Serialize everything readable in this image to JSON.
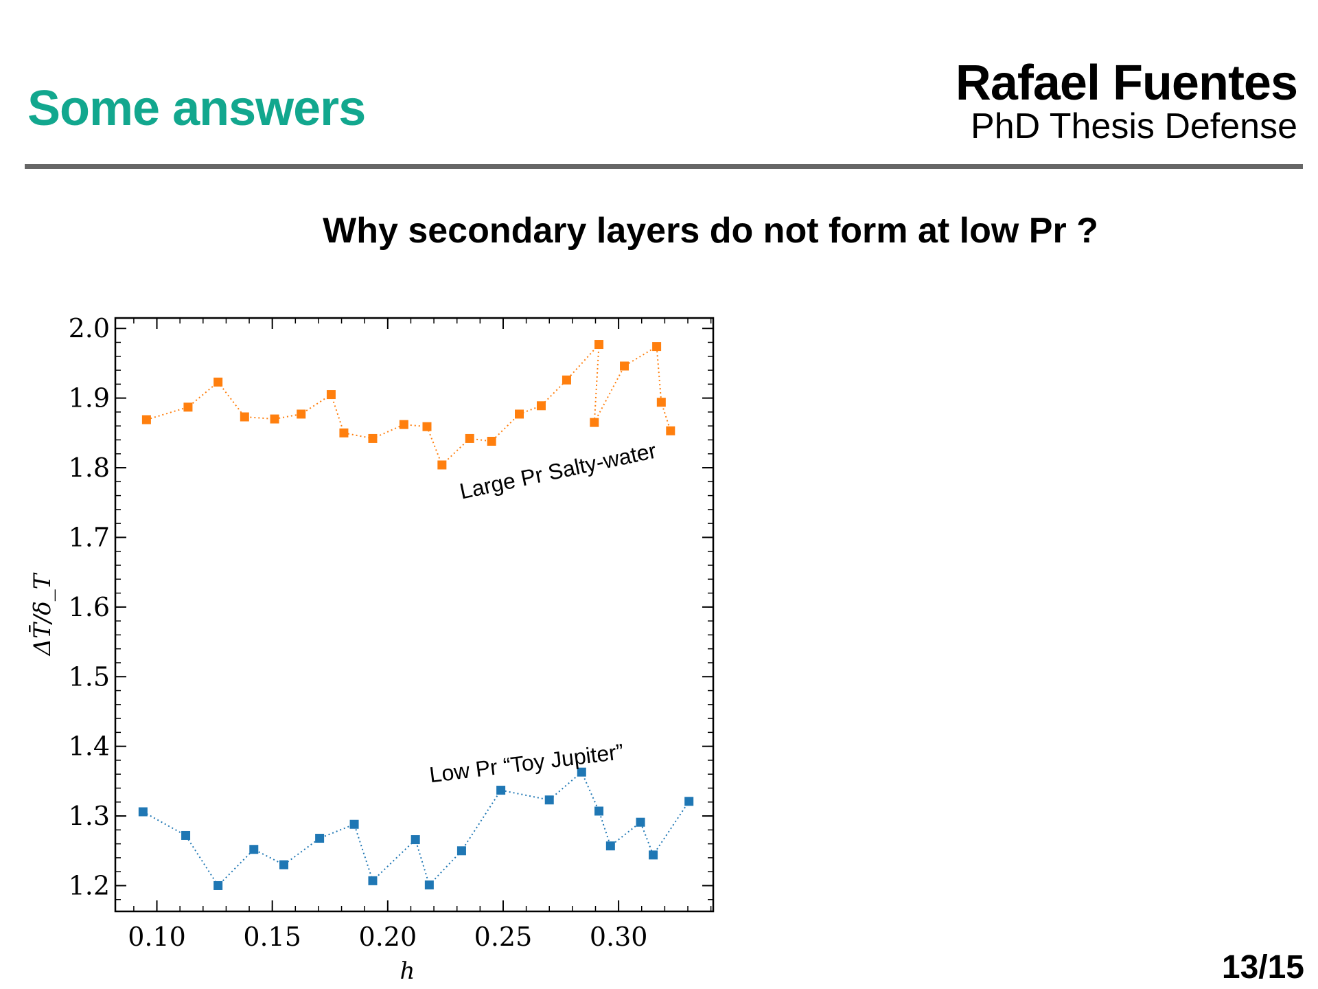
{
  "header": {
    "title": "Some answers",
    "author": "Rafael Fuentes",
    "subtitle": "PhD Thesis Defense"
  },
  "question": "Why secondary layers do not form at low Pr ?",
  "page": "13/15",
  "chart_data": {
    "type": "line",
    "xlabel": "h",
    "ylabel": "ΔT̄/δ_T",
    "xlim": [
      0.082,
      0.341
    ],
    "ylim": [
      1.163,
      2.015
    ],
    "xticks": [
      0.1,
      0.15,
      0.2,
      0.25,
      0.3
    ],
    "xtick_labels": [
      "0.10",
      "0.15",
      "0.20",
      "0.25",
      "0.30"
    ],
    "yticks": [
      1.2,
      1.3,
      1.4,
      1.5,
      1.6,
      1.7,
      1.8,
      1.9,
      2.0
    ],
    "ytick_labels": [
      "1.2",
      "1.3",
      "1.4",
      "1.5",
      "1.6",
      "1.7",
      "1.8",
      "1.9",
      "2.0"
    ],
    "grid": false,
    "marker": "square",
    "line_style": "dotted",
    "series": [
      {
        "name": "Large Pr Salty-water",
        "color": "#ff7f0e",
        "x": [
          0.0955,
          0.1135,
          0.1265,
          0.138,
          0.151,
          0.1625,
          0.1755,
          0.181,
          0.1935,
          0.207,
          0.217,
          0.2235,
          0.2355,
          0.245,
          0.257,
          0.2665,
          0.2775,
          0.2915,
          0.2895,
          0.3025,
          0.3165,
          0.3185,
          0.3225
        ],
        "y": [
          1.869,
          1.887,
          1.923,
          1.873,
          1.87,
          1.877,
          1.905,
          1.85,
          1.842,
          1.862,
          1.859,
          1.804,
          1.842,
          1.838,
          1.877,
          1.889,
          1.926,
          1.977,
          1.865,
          1.946,
          1.974,
          1.894,
          1.853
        ]
      },
      {
        "name": "Low Pr “Toy Jupiter”",
        "color": "#1f77b4",
        "x": [
          0.094,
          0.1125,
          0.1265,
          0.142,
          0.155,
          0.1705,
          0.1855,
          0.1935,
          0.212,
          0.218,
          0.232,
          0.249,
          0.27,
          0.284,
          0.2915,
          0.2965,
          0.3095,
          0.315,
          0.3305
        ],
        "y": [
          1.306,
          1.272,
          1.2,
          1.252,
          1.23,
          1.268,
          1.288,
          1.207,
          1.266,
          1.201,
          1.25,
          1.337,
          1.323,
          1.363,
          1.307,
          1.257,
          1.291,
          1.244,
          1.321
        ]
      }
    ],
    "annotations": [
      {
        "text": "Large Pr Salty-water",
        "x": 0.232,
        "y": 1.755,
        "rotation": -12
      },
      {
        "text": "Low Pr “Toy Jupiter”",
        "x": 0.2185,
        "y": 1.348,
        "rotation": -7
      }
    ]
  }
}
